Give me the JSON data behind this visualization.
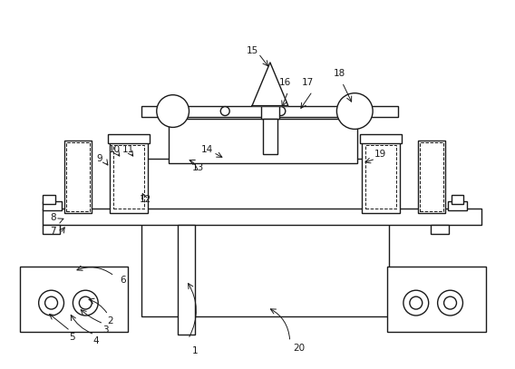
{
  "bg_color": "#ffffff",
  "lc": "#1a1a1a",
  "lw": 1.0,
  "fig_w": 5.68,
  "fig_h": 4.07
}
